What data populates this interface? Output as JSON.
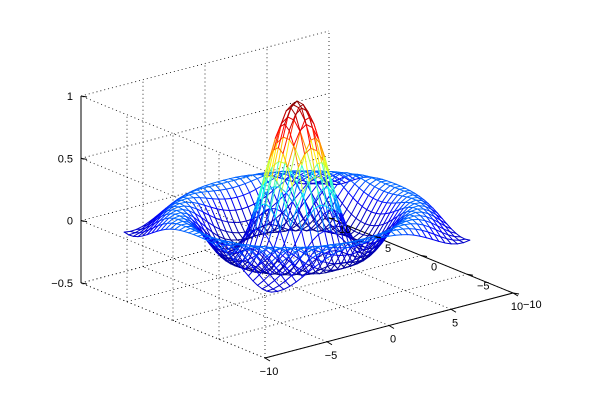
{
  "chart_data": {
    "type": "surface-mesh",
    "function": "sinc: z = sin(r)/r, r = sqrt(x^2 + y^2)",
    "title": "",
    "xlabel": "",
    "ylabel": "",
    "zlabel": "",
    "x": {
      "range": [
        -10,
        10
      ],
      "ticks": [
        -10,
        -5,
        0,
        5,
        10
      ],
      "tick_labels": [
        "−10",
        "−5",
        "0",
        "5",
        "10"
      ]
    },
    "y": {
      "range": [
        -10,
        10
      ],
      "ticks": [
        -10,
        -5,
        0,
        5,
        10
      ],
      "tick_labels": [
        "−10",
        "−5",
        "0",
        "5",
        "10"
      ]
    },
    "z": {
      "range": [
        -0.5,
        1
      ],
      "ticks": [
        -0.5,
        0,
        0.5,
        1
      ],
      "tick_labels": [
        "−0.5",
        "0",
        "0.5",
        "1"
      ]
    },
    "mesh": {
      "grid_step": 0.5,
      "min": -8,
      "max": 8,
      "z_min": -0.2172,
      "z_max": 1.0
    },
    "colormap": "jet",
    "colormap_stops": [
      "#00008f",
      "#0000ff",
      "#00ffff",
      "#ffff00",
      "#ff0000",
      "#800000"
    ],
    "view": {
      "azimuth_deg": -37.5,
      "elevation_deg": 30
    },
    "box": true,
    "grid": true
  }
}
